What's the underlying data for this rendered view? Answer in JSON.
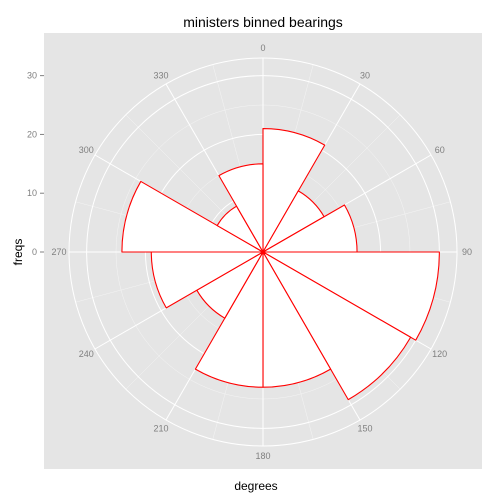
{
  "chart_data": {
    "type": "polar-bar",
    "title": "ministers binned bearings",
    "xlabel": "degrees",
    "ylabel": "freqs",
    "theta_ticks": [
      "0",
      "30",
      "60",
      "90",
      "120",
      "150",
      "180",
      "210",
      "240",
      "270",
      "300",
      "330"
    ],
    "r_ticks": [
      0,
      10,
      20,
      30
    ],
    "r_max": 33,
    "bins": [
      {
        "start": 0,
        "end": 30,
        "value": 21
      },
      {
        "start": 30,
        "end": 60,
        "value": 12
      },
      {
        "start": 60,
        "end": 90,
        "value": 16
      },
      {
        "start": 90,
        "end": 120,
        "value": 30
      },
      {
        "start": 120,
        "end": 150,
        "value": 29
      },
      {
        "start": 150,
        "end": 180,
        "value": 23
      },
      {
        "start": 180,
        "end": 210,
        "value": 23
      },
      {
        "start": 210,
        "end": 240,
        "value": 13
      },
      {
        "start": 240,
        "end": 270,
        "value": 19
      },
      {
        "start": 270,
        "end": 300,
        "value": 24
      },
      {
        "start": 300,
        "end": 330,
        "value": 9
      },
      {
        "start": 330,
        "end": 360,
        "value": 15
      }
    ],
    "bar_fill": "#ffffff",
    "bar_stroke": "#ff0000",
    "panel_background": "#e5e5e5",
    "grid_color": "#ffffff",
    "grid": true,
    "legend": "none"
  }
}
